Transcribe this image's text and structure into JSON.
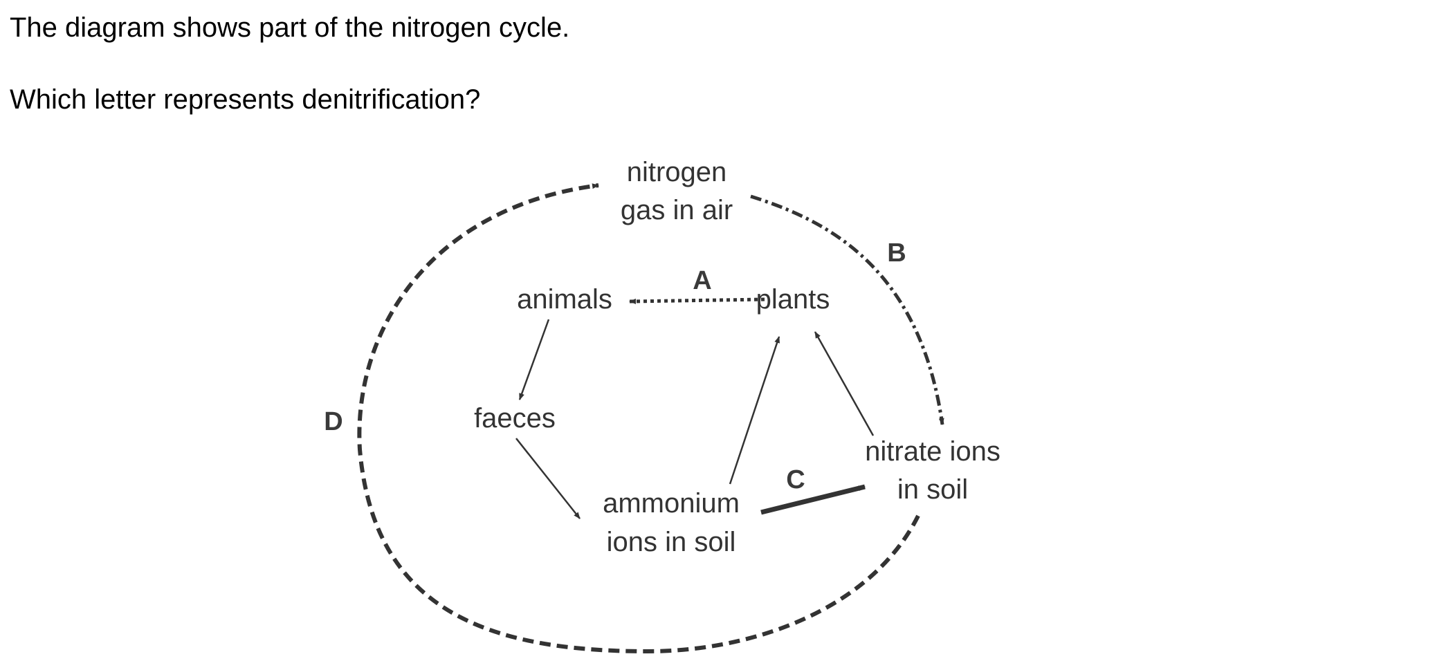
{
  "question": {
    "intro": "The diagram shows part of the nitrogen cycle.",
    "prompt": "Which letter represents denitrification?"
  },
  "diagram": {
    "nodes": {
      "nitrogen_gas": [
        "nitrogen",
        "gas in air"
      ],
      "animals": "animals",
      "plants": "plants",
      "faeces": "faeces",
      "ammonium": [
        "ammonium",
        "ions in soil"
      ],
      "nitrate": [
        "nitrate ions",
        "in soil"
      ]
    },
    "letters": {
      "a": "A",
      "b": "B",
      "c": "C",
      "d": "D"
    },
    "colors": {
      "ink": "#333333",
      "letters": "#3a3a3a"
    }
  }
}
